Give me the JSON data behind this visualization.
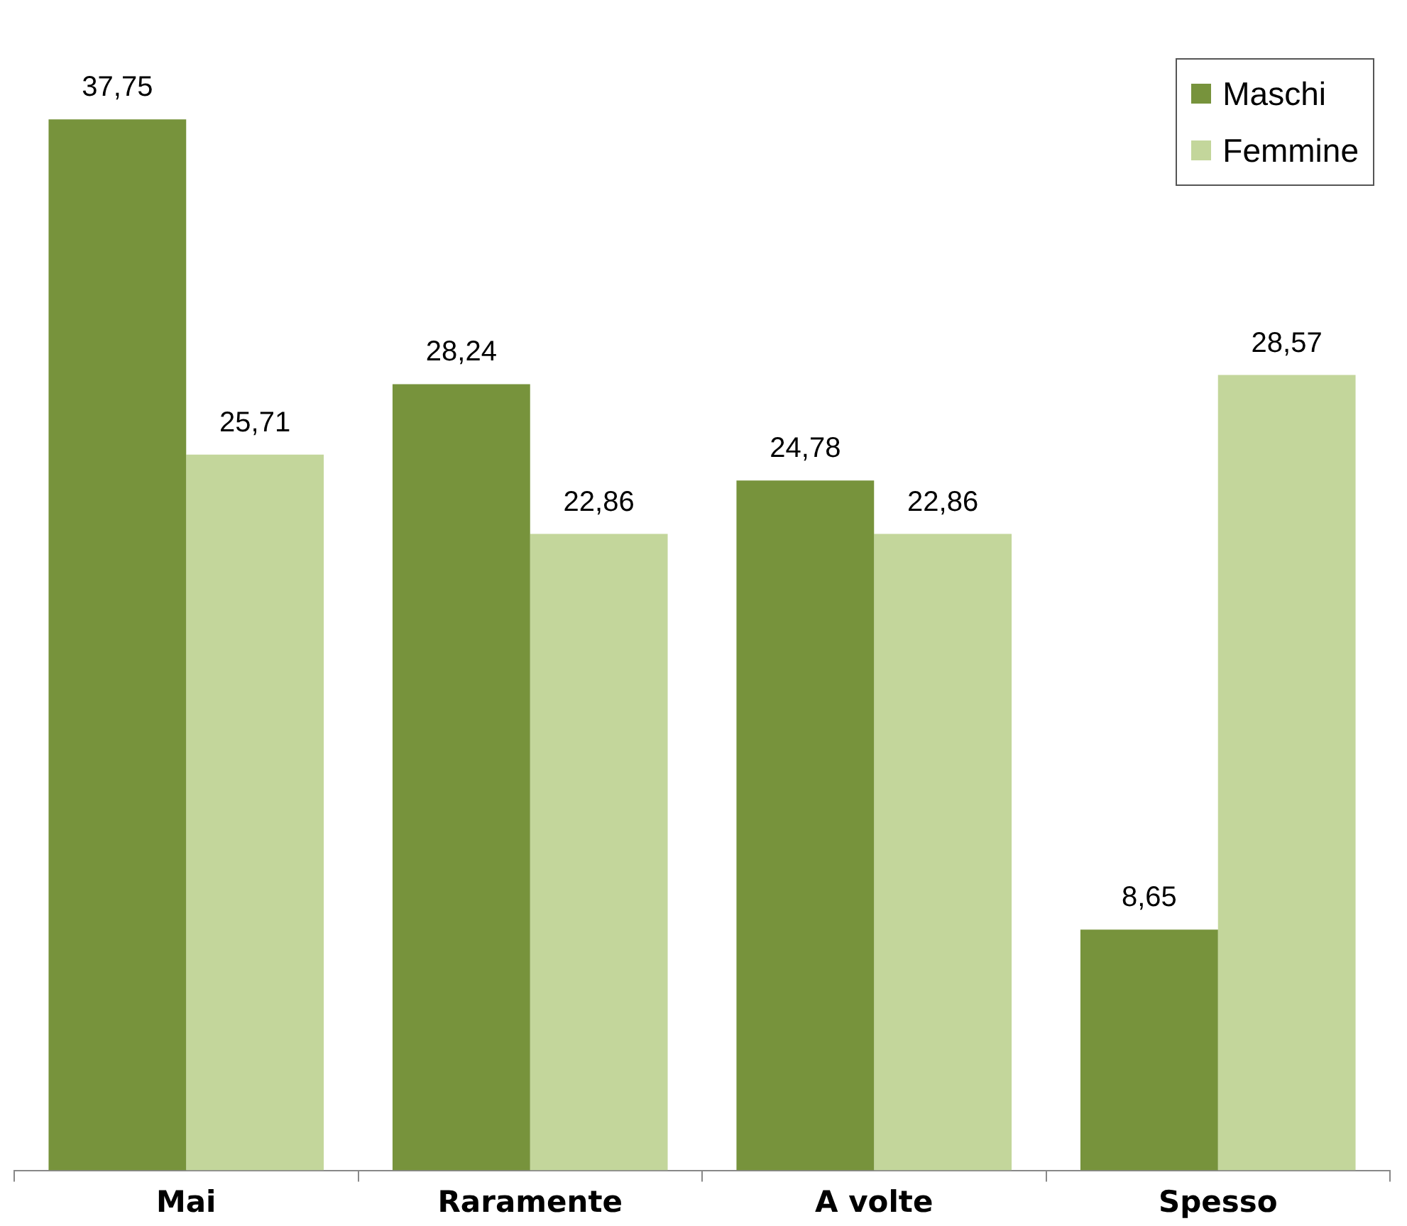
{
  "chart_data": {
    "type": "bar",
    "categories": [
      "Mai",
      "Raramente",
      "A volte",
      "Spesso"
    ],
    "series": [
      {
        "name": "Maschi",
        "color": "#77933c",
        "values": [
          37.75,
          28.24,
          24.78,
          8.65
        ],
        "value_labels": [
          "37,75",
          "28,24",
          "24,78",
          "8,65"
        ]
      },
      {
        "name": "Femmine",
        "color": "#c3d69b",
        "values": [
          25.71,
          22.86,
          22.86,
          28.57
        ],
        "value_labels": [
          "25,71",
          "22,86",
          "22,86",
          "28,57"
        ]
      }
    ],
    "legend": "top right"
  }
}
